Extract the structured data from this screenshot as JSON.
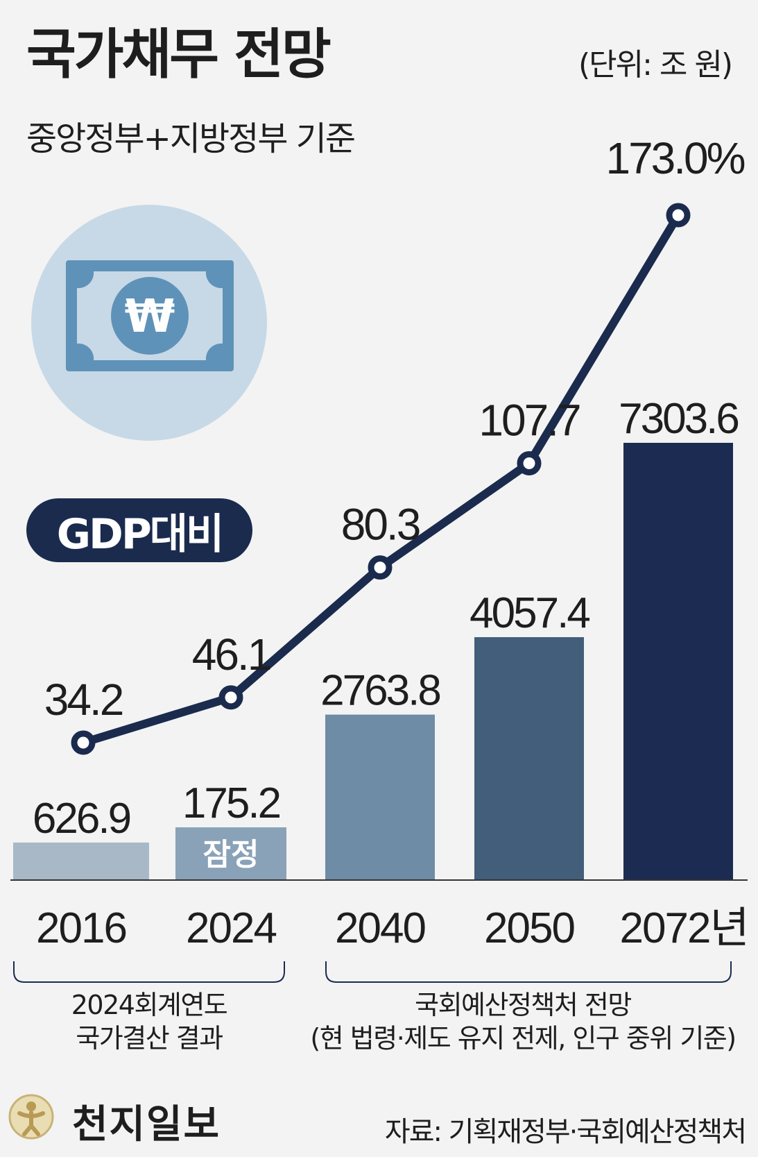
{
  "title": "국가채무 전망",
  "unit": "(단위: 조 원)",
  "subtitle": "중앙정부+지방정부 기준",
  "gdp_badge": "GDP대비",
  "provisional_tag": "잠정",
  "brace_left": [
    "2024회계연도",
    "국가결산 결과"
  ],
  "brace_right": [
    "국회예산정책처 전망",
    "(현 법령·제도 유지 전제, 인구 중위 기준)"
  ],
  "brand": "천지일보",
  "source": "자료: 기획재정부·국회예산정책처",
  "colors": {
    "line": "#1a2b4e",
    "bars": [
      "#a8b8c6",
      "#8aa2b8",
      "#6f8ca6",
      "#435e7a",
      "#1c2b52"
    ],
    "badge": "#1a2b4e",
    "icon_circle": "#c7d9e6",
    "icon_note": "#5f92b8"
  },
  "icons": {
    "money": "won-banknote-icon",
    "logo": "person-circle-logo"
  },
  "chart_data": {
    "type": "bar+line",
    "categories": [
      "2016",
      "2024",
      "2040",
      "2050",
      "2072년"
    ],
    "series": [
      {
        "type": "bar",
        "values": [
          626.9,
          175.2,
          2763.8,
          4057.4,
          7303.6
        ],
        "labels": [
          "626.9",
          "175.2",
          "2763.8",
          "4057.4",
          "7303.6"
        ]
      },
      {
        "type": "line",
        "values": [
          34.2,
          46.1,
          80.3,
          107.7,
          173.0
        ],
        "labels": [
          "34.2",
          "46.1",
          "80.3",
          "107.7",
          "173.0%"
        ]
      }
    ]
  }
}
